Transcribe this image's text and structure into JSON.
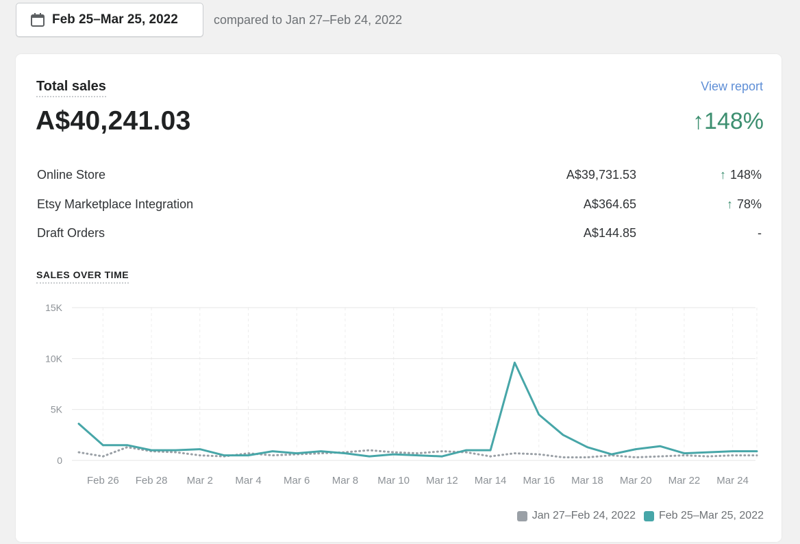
{
  "header": {
    "date_range": "Feb 25–Mar 25, 2022",
    "compared_to": "compared to Jan 27–Feb 24, 2022"
  },
  "card": {
    "title": "Total sales",
    "view_report": "View report",
    "total": "A$40,241.03",
    "total_change": "148%",
    "rows": [
      {
        "name": "Online Store",
        "value": "A$39,731.53",
        "change": "148%",
        "up": true
      },
      {
        "name": "Etsy Marketplace Integration",
        "value": "A$364.65",
        "change": "78%",
        "up": true
      },
      {
        "name": "Draft Orders",
        "value": "A$144.85",
        "change": "-",
        "up": false
      }
    ],
    "section_label": "SALES OVER TIME"
  },
  "colors": {
    "current": "#47a6a8",
    "previous": "#9aa0a6",
    "up": "#3d8f70",
    "link": "#5e8ed6"
  },
  "chart_data": {
    "type": "line",
    "ylim": [
      0,
      15000
    ],
    "y_ticks": [
      0,
      5000,
      10000,
      15000
    ],
    "y_tick_labels": [
      "0",
      "5K",
      "10K",
      "15K"
    ],
    "x_tick_labels": [
      "Feb 26",
      "Feb 28",
      "Mar 2",
      "Mar 4",
      "Mar 6",
      "Mar 8",
      "Mar 10",
      "Mar 12",
      "Mar 14",
      "Mar 16",
      "Mar 18",
      "Mar 20",
      "Mar 22",
      "Mar 24"
    ],
    "x": [
      "Feb 25",
      "Feb 26",
      "Feb 27",
      "Feb 28",
      "Mar 1",
      "Mar 2",
      "Mar 3",
      "Mar 4",
      "Mar 5",
      "Mar 6",
      "Mar 7",
      "Mar 8",
      "Mar 9",
      "Mar 10",
      "Mar 11",
      "Mar 12",
      "Mar 13",
      "Mar 14",
      "Mar 15",
      "Mar 16",
      "Mar 17",
      "Mar 18",
      "Mar 19",
      "Mar 20",
      "Mar 21",
      "Mar 22",
      "Mar 23",
      "Mar 24",
      "Mar 25"
    ],
    "series": [
      {
        "name": "Jan 27–Feb 24, 2022",
        "style": "dotted",
        "values": [
          800,
          400,
          1300,
          900,
          800,
          500,
          400,
          700,
          500,
          600,
          700,
          800,
          1000,
          800,
          700,
          900,
          800,
          400,
          700,
          600,
          300,
          300,
          500,
          300,
          400,
          500,
          400,
          500,
          500
        ]
      },
      {
        "name": "Feb 25–Mar 25, 2022",
        "style": "solid",
        "values": [
          3600,
          1500,
          1500,
          1000,
          1000,
          1100,
          500,
          500,
          900,
          700,
          900,
          700,
          400,
          600,
          500,
          400,
          1000,
          1000,
          9600,
          4500,
          2500,
          1300,
          600,
          1100,
          1400,
          700,
          800,
          900,
          900
        ]
      }
    ]
  }
}
